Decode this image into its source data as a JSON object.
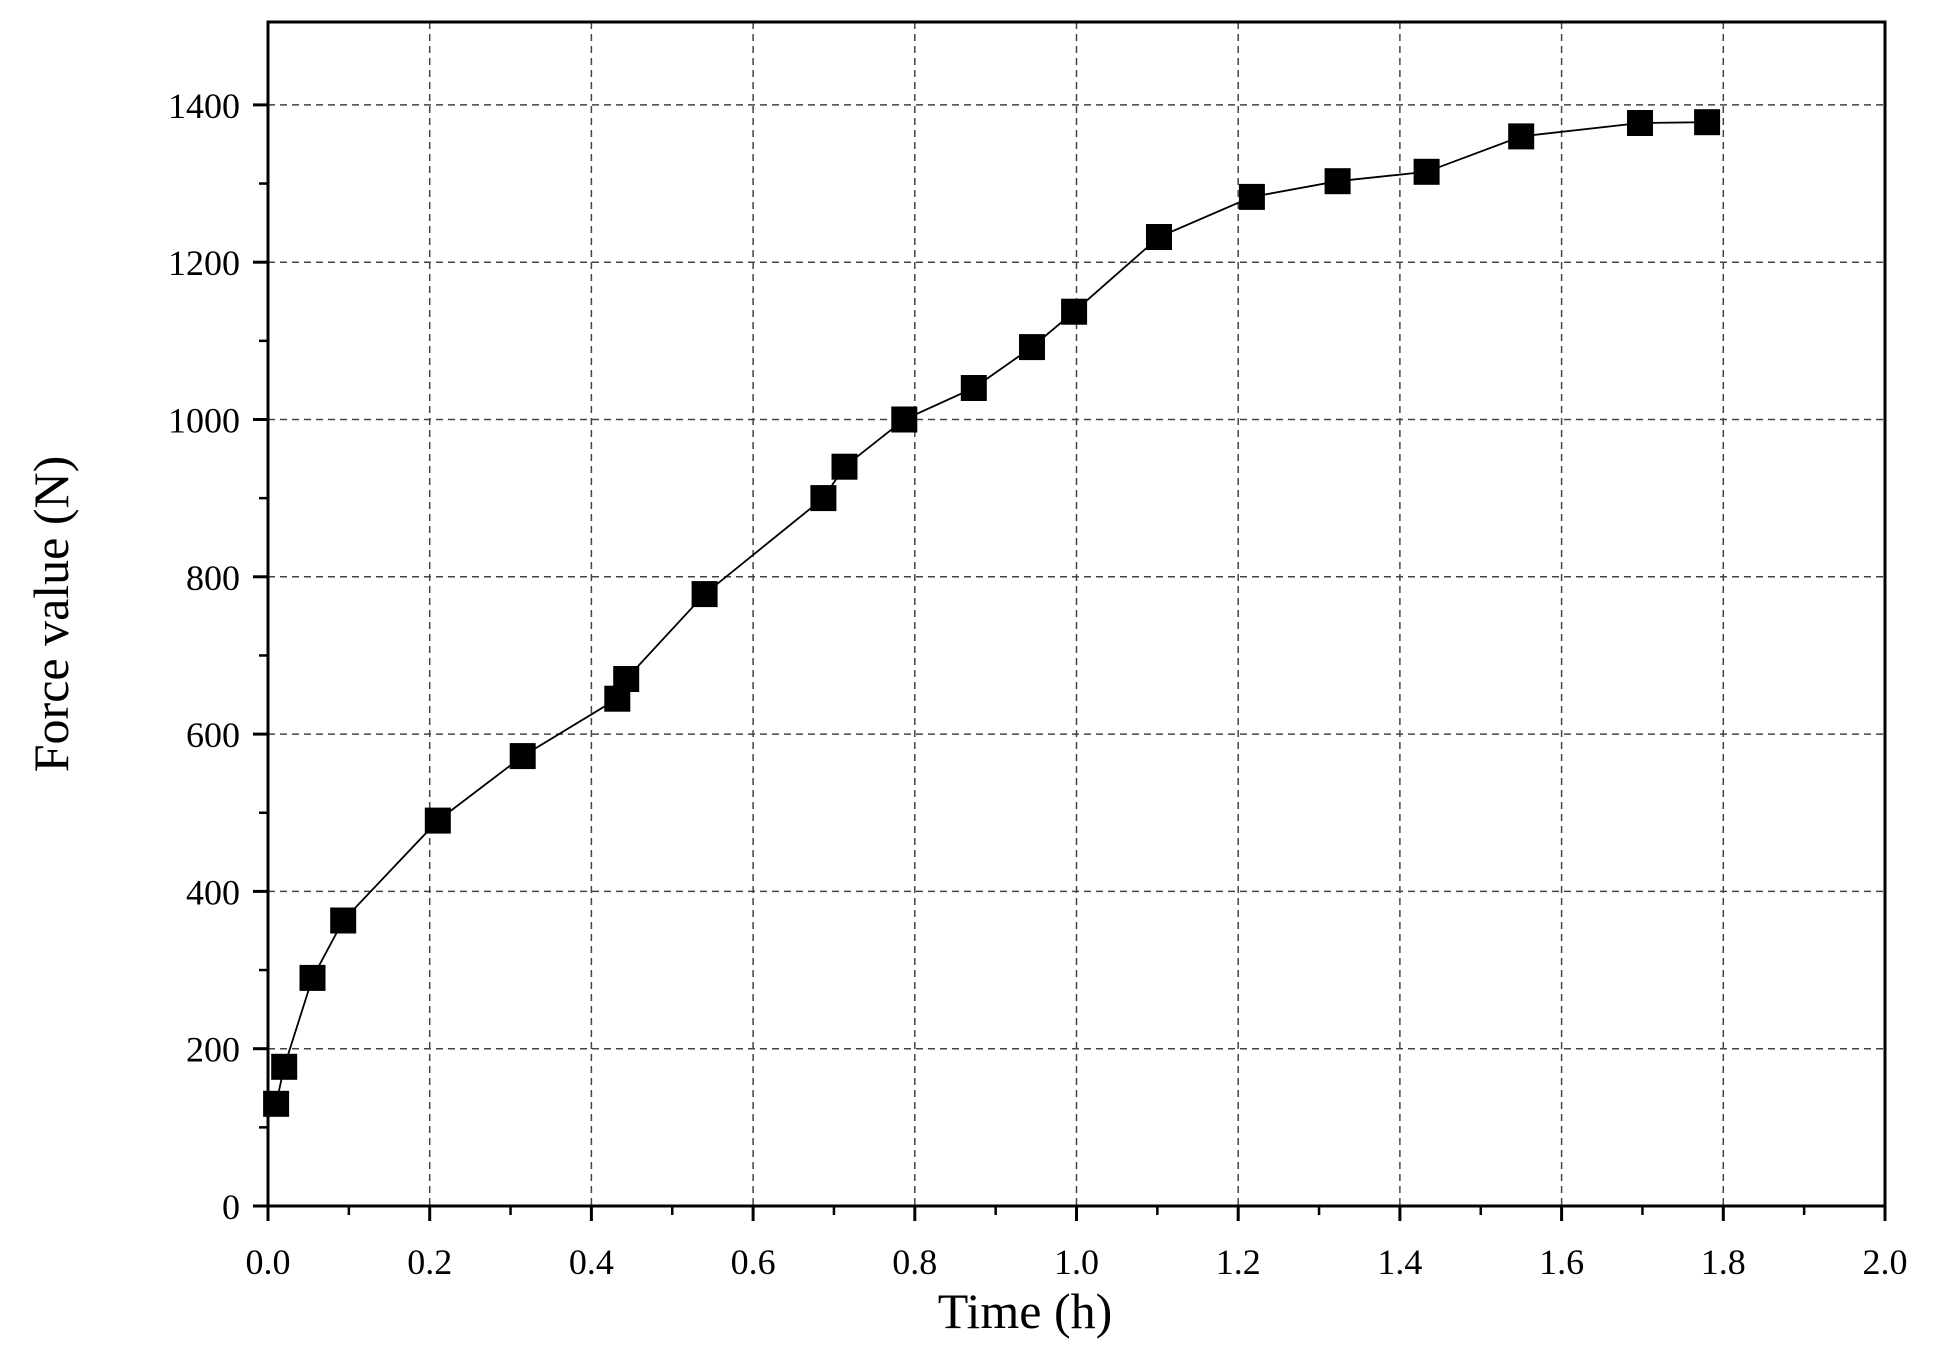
{
  "chart_data": {
    "type": "line",
    "title": "",
    "xlabel": "Time (h)",
    "ylabel": "Force value (N)",
    "xlim": [
      0.0,
      2.0
    ],
    "ylim": [
      0,
      1500
    ],
    "xticks": [
      0.0,
      0.2,
      0.4,
      0.6,
      0.8,
      1.0,
      1.2,
      1.4,
      1.6,
      1.8,
      2.0
    ],
    "xtick_labels": [
      "0.0",
      "0.2",
      "0.4",
      "0.6",
      "0.8",
      "1.0",
      "1.2",
      "1.4",
      "1.6",
      "1.8",
      "2.0"
    ],
    "yticks": [
      0,
      200,
      400,
      600,
      800,
      1000,
      1200,
      1400
    ],
    "ytick_labels": [
      "0",
      "200",
      "400",
      "600",
      "800",
      "1000",
      "1200",
      "1400"
    ],
    "grid": true,
    "grid_style": "dashed",
    "marker": "square",
    "series": [
      {
        "color": "#000000",
        "x": [
          0.01,
          0.02,
          0.055,
          0.093,
          0.21,
          0.315,
          0.432,
          0.443,
          0.54,
          0.687,
          0.713,
          0.787,
          0.873,
          0.945,
          0.997,
          1.102,
          1.217,
          1.323,
          1.433,
          1.55,
          1.697,
          1.78
        ],
        "y": [
          130,
          177,
          290,
          363,
          490,
          572,
          645,
          670,
          778,
          900,
          940,
          1000,
          1040,
          1092,
          1137,
          1232,
          1283,
          1303,
          1315,
          1360,
          1377,
          1378
        ]
      }
    ]
  }
}
